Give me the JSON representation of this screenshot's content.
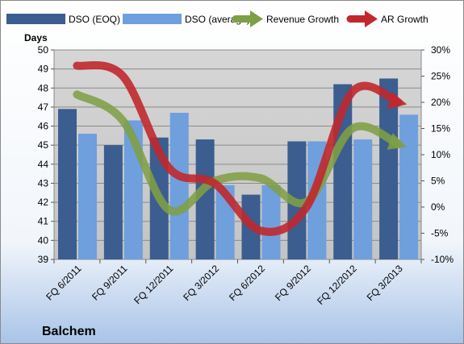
{
  "chart_data": {
    "type": "bar",
    "company": "Balchem",
    "ylabel": "Days",
    "categories": [
      "FQ 6/2011",
      "FQ 9/2011",
      "FQ 12/2011",
      "FQ 3/2012",
      "FQ 6/2012",
      "FQ 9/2012",
      "FQ 12/2012",
      "FQ 3/2013"
    ],
    "ylim": [
      39,
      50
    ],
    "y_ticks": [
      "50",
      "49",
      "48",
      "47",
      "46",
      "45",
      "44",
      "43",
      "42",
      "41",
      "40",
      "39"
    ],
    "y2lim": [
      -10,
      30
    ],
    "y2_ticks": [
      "30%",
      "25%",
      "20%",
      "15%",
      "10%",
      "5%",
      "0%",
      "-5%",
      "-10%"
    ],
    "grid": true,
    "legend_position": "top",
    "series": [
      {
        "name": "DSO (EOQ)",
        "type": "bar",
        "axis": "left",
        "color": "#3b5d8f",
        "values": [
          46.9,
          45.0,
          45.4,
          45.3,
          42.4,
          45.2,
          48.2,
          48.5
        ]
      },
      {
        "name": "DSO (average)",
        "type": "bar",
        "axis": "left",
        "color": "#6f9fdc",
        "values": [
          45.6,
          46.3,
          46.7,
          42.9,
          42.9,
          45.2,
          45.3,
          46.6
        ]
      },
      {
        "name": "Revenue Growth",
        "type": "line",
        "axis": "right",
        "unit": "%",
        "color": "#7f9f44",
        "values": [
          21.5,
          16.5,
          -0.5,
          5.0,
          5.5,
          1.0,
          15.0,
          12.0
        ]
      },
      {
        "name": "AR Growth",
        "type": "line",
        "axis": "right",
        "unit": "%",
        "color": "#c0282d",
        "values": [
          27.0,
          25.0,
          7.5,
          4.5,
          -4.5,
          0.0,
          22.0,
          20.0
        ]
      }
    ]
  }
}
